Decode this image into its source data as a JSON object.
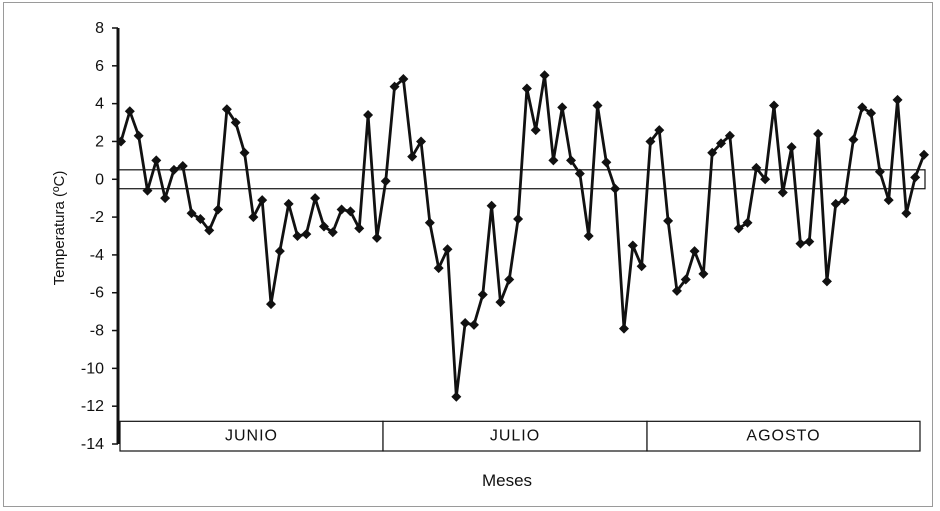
{
  "chart_data": {
    "type": "line",
    "title": "",
    "xlabel": "Meses",
    "ylabel": "Temperatura (ºC)",
    "ylim": [
      -14,
      8
    ],
    "yticks": [
      8,
      6,
      4,
      2,
      0,
      -2,
      -4,
      -6,
      -8,
      -10,
      -12,
      -14
    ],
    "months": [
      "JUNIO",
      "JULIO",
      "AGOSTO"
    ],
    "days_per_month": [
      30,
      31,
      31
    ],
    "grid": false,
    "legend": "none",
    "series_color": "#111111",
    "series": [
      {
        "values": [
          2.0,
          3.6,
          2.3,
          -0.6,
          1.0,
          -1.0,
          0.5,
          0.7,
          -1.8,
          -2.1,
          -2.7,
          -1.6,
          3.7,
          3.0,
          1.4,
          -2.0,
          -1.1,
          -6.6,
          -3.8,
          -1.3,
          -3.0,
          -2.9,
          -1.0,
          -2.5,
          -2.8,
          -1.6,
          -1.7,
          -2.6,
          3.4,
          -3.1,
          -0.1,
          4.9,
          5.3,
          1.2,
          2.0,
          -2.3,
          -4.7,
          -3.7,
          -11.5,
          -7.6,
          -7.7,
          -6.1,
          -1.4,
          -6.5,
          -5.3,
          -2.1,
          4.8,
          2.6,
          5.5,
          1.0,
          3.8,
          1.0,
          0.3,
          -3.0,
          3.9,
          0.9,
          -0.5,
          -7.9,
          -3.5,
          -4.6,
          2.0,
          2.6,
          -2.2,
          -5.9,
          -5.3,
          -3.8,
          -5.0,
          1.4,
          1.9,
          2.3,
          -2.6,
          -2.3,
          0.6,
          0.0,
          3.9,
          -0.7,
          1.7,
          -3.4,
          -3.3,
          2.4,
          -5.4,
          -1.3,
          -1.1,
          2.1,
          3.8,
          3.5,
          0.4,
          -1.1,
          4.2,
          -1.8,
          0.1,
          1.3
        ]
      }
    ]
  }
}
